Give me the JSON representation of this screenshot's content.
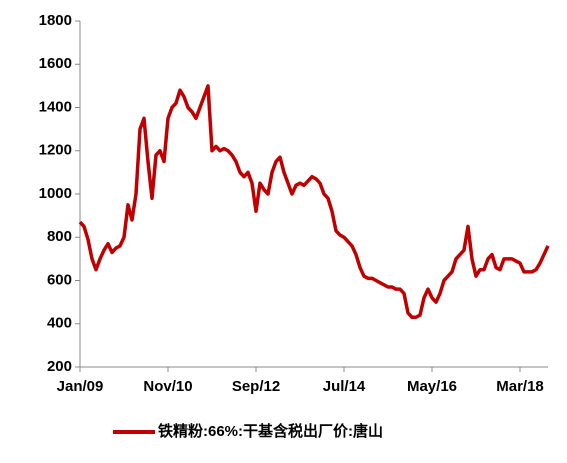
{
  "chart_data": {
    "type": "line",
    "categories": [
      "Jan/09",
      null,
      null,
      null,
      null,
      null,
      null,
      null,
      null,
      null,
      null,
      null,
      null,
      null,
      null,
      null,
      null,
      null,
      null,
      null,
      null,
      null,
      "Nov/10",
      null,
      null,
      null,
      null,
      null,
      null,
      null,
      null,
      null,
      null,
      null,
      null,
      null,
      null,
      null,
      null,
      null,
      null,
      null,
      null,
      null,
      "Sep/12",
      null,
      null,
      null,
      null,
      null,
      null,
      null,
      null,
      null,
      null,
      null,
      null,
      null,
      null,
      null,
      null,
      null,
      null,
      null,
      null,
      null,
      "Jul/14",
      null,
      null,
      null,
      null,
      null,
      null,
      null,
      null,
      null,
      null,
      null,
      null,
      null,
      null,
      null,
      null,
      null,
      null,
      null,
      null,
      null,
      "May/16",
      null,
      null,
      null,
      null,
      null,
      null,
      null,
      null,
      null,
      null,
      null,
      null,
      null,
      null,
      null,
      null,
      null,
      null,
      null,
      null,
      null,
      "Mar/18",
      null,
      null,
      null,
      null,
      null,
      null,
      null
    ],
    "series": [
      {
        "name": "铁精粉:66%:干基含税出厂价:唐山",
        "color": "#c00000",
        "values": [
          870,
          850,
          790,
          700,
          650,
          700,
          740,
          770,
          730,
          750,
          760,
          800,
          950,
          880,
          1000,
          1300,
          1350,
          1150,
          980,
          1180,
          1200,
          1150,
          1350,
          1400,
          1420,
          1480,
          1450,
          1400,
          1380,
          1350,
          1400,
          1450,
          1500,
          1200,
          1220,
          1200,
          1210,
          1200,
          1180,
          1150,
          1100,
          1080,
          1100,
          1050,
          920,
          1050,
          1020,
          1000,
          1100,
          1150,
          1170,
          1100,
          1050,
          1000,
          1040,
          1050,
          1040,
          1060,
          1080,
          1070,
          1050,
          1000,
          980,
          920,
          830,
          810,
          800,
          780,
          760,
          720,
          660,
          620,
          610,
          610,
          600,
          590,
          580,
          570,
          570,
          560,
          560,
          540,
          450,
          430,
          430,
          440,
          520,
          560,
          520,
          500,
          540,
          600,
          620,
          640,
          700,
          720,
          740,
          850,
          700,
          620,
          650,
          650,
          700,
          720,
          660,
          650,
          700,
          700,
          700,
          690,
          680,
          640,
          640,
          640,
          650,
          680,
          720,
          760
        ]
      }
    ],
    "ylim": [
      200,
      1800
    ],
    "yticks": [
      200,
      400,
      600,
      800,
      1000,
      1200,
      1400,
      1600,
      1800
    ],
    "grid": false
  }
}
